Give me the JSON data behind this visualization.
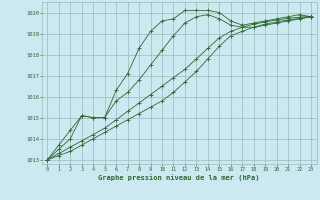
{
  "title": "Graphe pression niveau de la mer (hPa)",
  "xlabel": "Graphe pression niveau de la mer (hPa)",
  "bg_color": "#cce8f0",
  "grid_color": "#99bbbb",
  "line_color": "#2d6a2d",
  "xlim": [
    -0.5,
    23.5
  ],
  "ylim": [
    1012.8,
    1020.5
  ],
  "xticks": [
    0,
    1,
    2,
    3,
    4,
    5,
    6,
    7,
    8,
    9,
    10,
    11,
    12,
    13,
    14,
    15,
    16,
    17,
    18,
    19,
    20,
    21,
    22,
    23
  ],
  "yticks": [
    1013,
    1014,
    1015,
    1016,
    1017,
    1018,
    1019,
    1020
  ],
  "series": [
    [
      1013.0,
      1013.7,
      1014.4,
      1015.1,
      1015.0,
      1015.0,
      1016.3,
      1017.1,
      1018.3,
      1019.1,
      1019.6,
      1019.7,
      1020.1,
      1020.1,
      1020.1,
      1020.0,
      1019.6,
      1019.4,
      1019.5,
      1019.6,
      1019.7,
      1019.8,
      1019.9,
      1019.8
    ],
    [
      1013.0,
      1013.5,
      1014.0,
      1015.1,
      1015.0,
      1015.0,
      1015.8,
      1016.2,
      1016.8,
      1017.5,
      1018.2,
      1018.9,
      1019.5,
      1019.8,
      1019.9,
      1019.7,
      1019.4,
      1019.3,
      1019.3,
      1019.4,
      1019.5,
      1019.6,
      1019.7,
      1019.8
    ],
    [
      1013.0,
      1013.3,
      1013.6,
      1013.9,
      1014.2,
      1014.5,
      1014.9,
      1015.3,
      1015.7,
      1016.1,
      1016.5,
      1016.9,
      1017.3,
      1017.8,
      1018.3,
      1018.8,
      1019.1,
      1019.3,
      1019.45,
      1019.55,
      1019.65,
      1019.72,
      1019.78,
      1019.82
    ],
    [
      1013.0,
      1013.2,
      1013.4,
      1013.7,
      1014.0,
      1014.3,
      1014.6,
      1014.9,
      1015.2,
      1015.5,
      1015.8,
      1016.2,
      1016.7,
      1017.2,
      1017.8,
      1018.4,
      1018.9,
      1019.1,
      1019.3,
      1019.45,
      1019.55,
      1019.65,
      1019.72,
      1019.78
    ]
  ]
}
